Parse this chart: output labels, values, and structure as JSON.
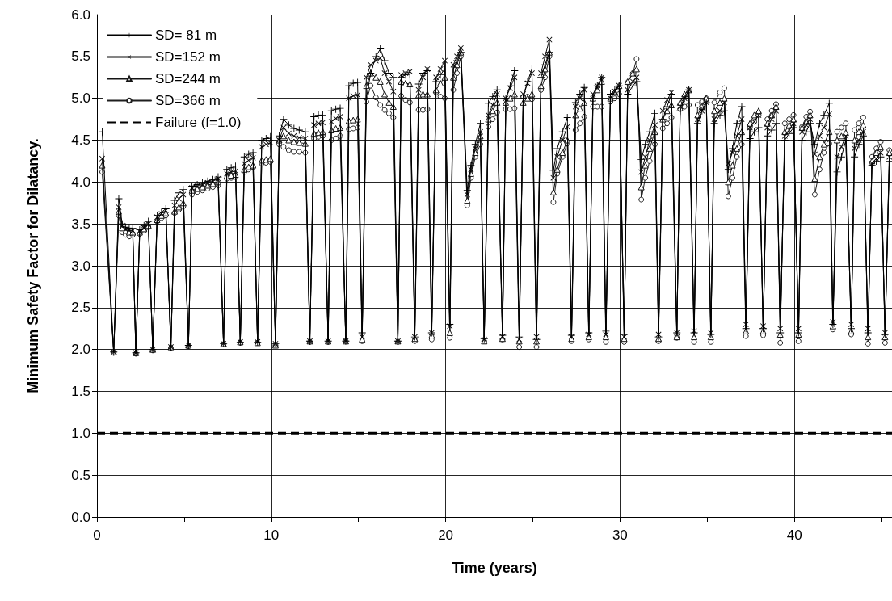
{
  "chart_data": {
    "type": "line",
    "xlabel": "Time (years)",
    "ylabel": "Minimum Safety Factor for Dilatancy.",
    "xlim": [
      0,
      45.6
    ],
    "ylim": [
      0,
      6
    ],
    "xticks": [
      0,
      {
        "value": 5,
        "label": null
      },
      10,
      {
        "value": 15,
        "label": null
      },
      20,
      {
        "value": 25,
        "label": null
      },
      30,
      {
        "value": 35,
        "label": null
      },
      40,
      {
        "value": 45,
        "label": null
      }
    ],
    "yticks": [
      {
        "value": 0,
        "label": "0.0"
      },
      0.5,
      {
        "value": 1,
        "label": "1.0"
      },
      1.5,
      {
        "value": 2,
        "label": "2.0"
      },
      2.5,
      {
        "value": 3,
        "label": "3.0"
      },
      3.5,
      {
        "value": 4,
        "label": "4.0"
      },
      4.5,
      {
        "value": 5,
        "label": "5.0"
      },
      5.5,
      {
        "value": 6,
        "label": "6.0"
      }
    ],
    "grid": true,
    "legend": "top left",
    "line_style": "solid",
    "x": [
      0.3,
      0.96,
      1.25,
      1.45,
      1.65,
      1.85,
      2.05,
      2.23,
      2.45,
      2.7,
      2.95,
      3.2,
      3.45,
      3.7,
      3.95,
      4.24,
      4.45,
      4.7,
      4.95,
      5.25,
      5.45,
      5.75,
      6.05,
      6.35,
      6.65,
      6.95,
      7.26,
      7.45,
      7.7,
      7.95,
      8.22,
      8.45,
      8.7,
      8.95,
      9.21,
      9.45,
      9.7,
      9.95,
      10.24,
      10.45,
      10.7,
      11.0,
      11.3,
      11.6,
      11.95,
      12.21,
      12.45,
      12.7,
      12.95,
      13.26,
      13.45,
      13.7,
      13.95,
      14.27,
      14.45,
      14.7,
      14.95,
      15.21,
      15.45,
      15.7,
      16.0,
      16.25,
      16.5,
      16.75,
      17.0,
      17.26,
      17.45,
      17.7,
      17.95,
      18.23,
      18.45,
      18.7,
      18.95,
      19.2,
      19.45,
      19.7,
      19.95,
      20.24,
      20.44,
      20.65,
      20.87,
      21.24,
      21.45,
      21.7,
      21.99,
      22.21,
      22.45,
      22.7,
      22.95,
      23.26,
      23.45,
      23.7,
      23.95,
      24.22,
      24.45,
      24.7,
      24.95,
      25.21,
      25.47,
      25.7,
      25.95,
      26.18,
      26.4,
      26.7,
      26.98,
      27.22,
      27.45,
      27.7,
      27.95,
      28.21,
      28.45,
      28.7,
      28.95,
      29.19,
      29.45,
      29.7,
      29.95,
      30.24,
      30.44,
      30.74,
      30.95,
      31.22,
      31.45,
      31.7,
      32.0,
      32.21,
      32.45,
      32.7,
      32.95,
      33.26,
      33.45,
      33.7,
      33.95,
      34.25,
      34.45,
      34.7,
      34.95,
      35.21,
      35.41,
      35.73,
      35.98,
      36.21,
      36.45,
      36.7,
      36.98,
      37.22,
      37.45,
      37.7,
      37.95,
      38.21,
      38.45,
      38.7,
      38.95,
      39.19,
      39.45,
      39.7,
      39.95,
      40.24,
      40.44,
      40.68,
      40.9,
      41.17,
      41.45,
      41.7,
      42.0,
      42.21,
      42.45,
      42.7,
      42.95,
      43.26,
      43.45,
      43.7,
      43.95,
      44.22,
      44.45,
      44.7,
      44.95,
      45.2,
      45.45
    ],
    "series": [
      {
        "name": "SD= 81 m",
        "color": "#000000",
        "marker": "cross",
        "values": [
          4.6,
          1.97,
          3.8,
          3.5,
          3.46,
          3.45,
          3.45,
          1.96,
          3.43,
          3.48,
          3.53,
          2.0,
          3.6,
          3.64,
          3.68,
          2.03,
          3.78,
          3.87,
          3.91,
          2.05,
          3.95,
          3.97,
          3.99,
          4.01,
          4.03,
          4.06,
          2.07,
          4.15,
          4.17,
          4.19,
          2.09,
          4.3,
          4.33,
          4.35,
          2.09,
          4.5,
          4.52,
          4.54,
          2.07,
          4.55,
          4.75,
          4.68,
          4.64,
          4.62,
          4.6,
          2.1,
          4.78,
          4.8,
          4.8,
          2.1,
          4.85,
          4.87,
          4.88,
          2.1,
          5.15,
          5.18,
          5.19,
          2.2,
          5.0,
          5.3,
          5.5,
          5.59,
          5.45,
          5.3,
          5.25,
          2.1,
          5.25,
          5.28,
          5.29,
          2.15,
          5.17,
          5.3,
          5.33,
          2.2,
          5.2,
          5.28,
          5.35,
          2.3,
          5.35,
          5.45,
          5.55,
          3.9,
          4.2,
          4.45,
          4.7,
          2.13,
          4.94,
          5.02,
          5.1,
          2.17,
          5.0,
          5.15,
          5.33,
          2.15,
          5.0,
          5.2,
          5.35,
          2.12,
          5.25,
          5.4,
          5.55,
          4.14,
          4.4,
          4.6,
          4.77,
          2.17,
          4.95,
          5.05,
          5.13,
          2.2,
          5.0,
          5.15,
          5.25,
          2.22,
          5.05,
          5.1,
          5.15,
          2.18,
          5.05,
          5.15,
          5.2,
          4.27,
          4.45,
          4.6,
          4.82,
          2.15,
          4.75,
          4.9,
          5.05,
          2.2,
          4.85,
          5.0,
          5.1,
          2.2,
          4.7,
          4.85,
          4.95,
          2.18,
          4.7,
          4.8,
          4.85,
          4.15,
          4.4,
          4.7,
          4.9,
          2.25,
          4.52,
          4.6,
          4.65,
          2.25,
          4.55,
          4.62,
          4.7,
          2.2,
          4.5,
          4.58,
          4.65,
          2.2,
          4.5,
          4.6,
          4.7,
          4.45,
          4.7,
          4.8,
          4.94,
          2.3,
          4.12,
          4.3,
          4.5,
          2.25,
          4.3,
          4.45,
          4.55,
          2.2,
          4.2,
          4.25,
          4.3,
          2.18,
          4.25
        ]
      },
      {
        "name": "SD=152 m",
        "color": "#0a0a0a",
        "marker": "cross",
        "values": [
          4.28,
          1.97,
          3.7,
          3.48,
          3.43,
          3.42,
          3.42,
          1.96,
          3.41,
          3.45,
          3.5,
          2.0,
          3.58,
          3.62,
          3.66,
          2.03,
          3.72,
          3.8,
          3.85,
          2.05,
          3.93,
          3.95,
          3.97,
          3.99,
          4.01,
          4.04,
          2.07,
          4.1,
          4.12,
          4.13,
          2.09,
          4.22,
          4.26,
          4.29,
          2.09,
          4.42,
          4.45,
          4.47,
          2.07,
          4.5,
          4.65,
          4.58,
          4.55,
          4.53,
          4.52,
          2.1,
          4.68,
          4.7,
          4.71,
          2.1,
          4.72,
          4.76,
          4.78,
          2.1,
          5.0,
          5.03,
          5.04,
          2.15,
          5.25,
          5.4,
          5.45,
          5.48,
          5.3,
          5.2,
          5.08,
          2.1,
          5.28,
          5.3,
          5.32,
          2.15,
          5.1,
          5.25,
          5.35,
          2.2,
          5.25,
          5.35,
          5.45,
          2.28,
          5.4,
          5.5,
          5.6,
          3.85,
          4.15,
          4.4,
          4.6,
          2.12,
          4.8,
          4.92,
          5.05,
          2.15,
          5.0,
          5.12,
          5.25,
          2.12,
          5.05,
          5.18,
          5.3,
          2.15,
          5.3,
          5.5,
          5.7,
          4.05,
          4.3,
          4.5,
          4.66,
          2.15,
          4.9,
          5.0,
          5.1,
          2.18,
          5.05,
          5.15,
          5.25,
          2.18,
          5.0,
          5.08,
          5.15,
          2.15,
          5.1,
          5.2,
          5.25,
          4.12,
          4.3,
          4.5,
          4.68,
          2.18,
          4.85,
          4.98,
          5.07,
          2.2,
          4.9,
          5.0,
          5.1,
          2.22,
          4.75,
          4.85,
          4.95,
          2.2,
          4.75,
          4.85,
          4.95,
          4.22,
          4.35,
          4.55,
          4.75,
          2.3,
          4.65,
          4.72,
          4.8,
          2.28,
          4.65,
          4.75,
          4.85,
          2.25,
          4.55,
          4.62,
          4.7,
          2.25,
          4.6,
          4.68,
          4.75,
          4.33,
          4.55,
          4.65,
          4.81,
          2.33,
          4.3,
          4.42,
          4.55,
          2.3,
          4.4,
          4.5,
          4.6,
          2.25,
          4.22,
          4.28,
          4.35,
          2.2,
          4.3
        ]
      },
      {
        "name": "SD=244 m",
        "color": "#141414",
        "marker": "triangle",
        "values": [
          4.2,
          1.97,
          3.65,
          3.45,
          3.42,
          3.4,
          3.4,
          1.96,
          3.4,
          3.44,
          3.48,
          2.0,
          3.55,
          3.6,
          3.63,
          2.03,
          3.65,
          3.7,
          3.75,
          2.05,
          3.9,
          3.92,
          3.94,
          3.96,
          3.98,
          4.0,
          2.07,
          4.07,
          4.08,
          4.09,
          2.09,
          4.15,
          4.18,
          4.2,
          2.08,
          4.26,
          4.27,
          4.28,
          2.05,
          4.5,
          4.55,
          4.5,
          4.48,
          4.47,
          4.46,
          2.1,
          4.58,
          4.59,
          4.6,
          2.1,
          4.62,
          4.64,
          4.65,
          2.1,
          4.73,
          4.74,
          4.75,
          2.12,
          5.15,
          5.3,
          5.25,
          5.2,
          5.05,
          4.95,
          4.9,
          2.1,
          5.2,
          5.18,
          5.17,
          2.13,
          5.04,
          5.05,
          5.05,
          2.17,
          5.1,
          5.18,
          5.25,
          2.2,
          5.25,
          5.4,
          5.55,
          3.78,
          4.1,
          4.35,
          4.55,
          2.1,
          4.75,
          4.85,
          4.95,
          2.13,
          4.95,
          5.0,
          5.05,
          2.1,
          4.95,
          5.0,
          5.05,
          2.1,
          5.15,
          5.35,
          5.55,
          3.88,
          4.15,
          4.35,
          4.5,
          2.13,
          4.8,
          4.88,
          4.95,
          2.15,
          5.0,
          5.1,
          5.2,
          2.15,
          5.0,
          5.08,
          5.15,
          2.13,
          5.2,
          5.3,
          5.35,
          3.94,
          4.2,
          4.4,
          4.6,
          2.13,
          4.75,
          4.85,
          4.92,
          2.15,
          4.95,
          5.05,
          5.1,
          2.15,
          4.8,
          4.9,
          5.0,
          2.15,
          4.85,
          4.95,
          5.0,
          4.0,
          4.2,
          4.4,
          4.6,
          2.22,
          4.7,
          4.8,
          4.85,
          2.22,
          4.7,
          4.8,
          4.9,
          2.18,
          4.6,
          4.68,
          4.75,
          2.18,
          4.65,
          4.72,
          4.8,
          4.04,
          4.3,
          4.45,
          4.6,
          2.28,
          4.5,
          4.55,
          4.59,
          2.22,
          4.5,
          4.6,
          4.68,
          2.15,
          4.25,
          4.35,
          4.42,
          2.15,
          4.35
        ]
      },
      {
        "name": "SD=366 m",
        "color": "#1e1e1e",
        "marker": "circle",
        "values": [
          4.12,
          1.96,
          3.6,
          3.4,
          3.37,
          3.35,
          3.37,
          1.95,
          3.38,
          3.42,
          3.46,
          1.99,
          3.53,
          3.57,
          3.6,
          2.02,
          3.63,
          3.67,
          3.71,
          2.04,
          3.85,
          3.88,
          3.9,
          3.92,
          3.94,
          3.96,
          2.06,
          4.04,
          4.05,
          4.06,
          2.08,
          4.12,
          4.15,
          4.18,
          2.08,
          4.22,
          4.23,
          4.24,
          2.05,
          4.45,
          4.42,
          4.38,
          4.36,
          4.36,
          4.35,
          2.09,
          4.52,
          4.54,
          4.55,
          2.09,
          4.5,
          4.52,
          4.55,
          2.1,
          4.63,
          4.64,
          4.65,
          2.1,
          4.96,
          5.15,
          5.01,
          4.92,
          4.86,
          4.82,
          4.77,
          2.09,
          5.03,
          4.98,
          4.95,
          2.1,
          4.86,
          4.86,
          4.87,
          2.12,
          5.07,
          5.02,
          5.0,
          2.14,
          5.1,
          5.3,
          5.5,
          3.72,
          4.05,
          4.3,
          4.45,
          2.1,
          4.66,
          4.75,
          4.83,
          2.12,
          4.87,
          4.87,
          4.88,
          2.03,
          5.02,
          5.02,
          4.99,
          2.03,
          5.1,
          5.25,
          5.5,
          3.76,
          4.1,
          4.3,
          4.46,
          2.1,
          4.62,
          4.7,
          4.78,
          2.12,
          4.9,
          4.9,
          4.9,
          2.09,
          4.96,
          5.0,
          5.05,
          2.09,
          5.19,
          5.3,
          5.47,
          3.79,
          4.05,
          4.25,
          4.45,
          2.1,
          4.64,
          4.7,
          4.77,
          2.14,
          4.87,
          4.9,
          4.92,
          2.09,
          4.92,
          4.96,
          5.0,
          2.09,
          4.95,
          5.07,
          5.12,
          3.83,
          4.05,
          4.3,
          4.45,
          2.16,
          4.65,
          4.72,
          4.8,
          2.17,
          4.75,
          4.85,
          4.93,
          2.08,
          4.7,
          4.75,
          4.8,
          2.1,
          4.66,
          4.78,
          4.84,
          3.85,
          4.15,
          4.35,
          4.46,
          2.24,
          4.6,
          4.65,
          4.7,
          2.18,
          4.62,
          4.7,
          4.77,
          2.07,
          4.3,
          4.4,
          4.48,
          2.08,
          4.38
        ]
      }
    ],
    "ref_lines": [
      {
        "axis": "y",
        "value": 1.0,
        "label": "Failure (f=1.0)",
        "color": "#000000",
        "line_style": "dashed"
      }
    ]
  }
}
